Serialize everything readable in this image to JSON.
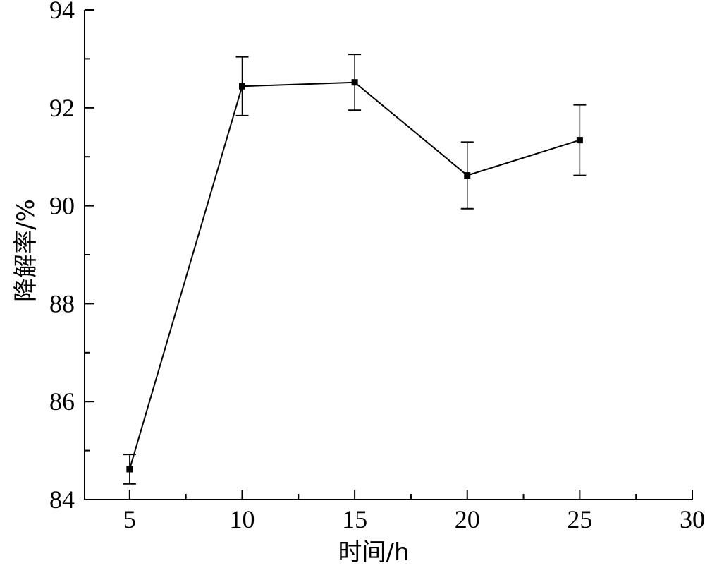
{
  "chart_data": {
    "type": "line",
    "xlabel": "时间/h",
    "ylabel": "降解率/%",
    "xlim": [
      3,
      30
    ],
    "ylim": [
      84,
      94
    ],
    "x_ticks": [
      5,
      10,
      15,
      20,
      25,
      30
    ],
    "y_ticks": [
      84,
      86,
      88,
      90,
      92,
      94
    ],
    "grid": false,
    "colors": {
      "line": "#000000",
      "axis": "#000000",
      "background": "#ffffff"
    },
    "series": [
      {
        "x": [
          5,
          10,
          15,
          20,
          25
        ],
        "values": [
          84.62,
          92.44,
          92.52,
          90.62,
          91.34
        ],
        "error": [
          0.3,
          0.6,
          0.57,
          0.68,
          0.72
        ]
      }
    ]
  }
}
